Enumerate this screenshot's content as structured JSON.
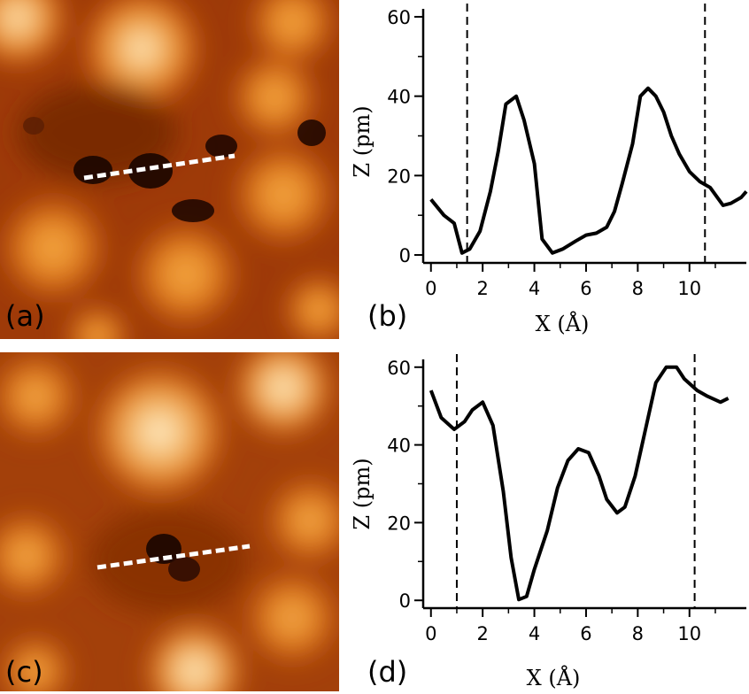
{
  "panels": {
    "a": {
      "letter": "(a)"
    },
    "b": {
      "letter": "(b)"
    },
    "c": {
      "letter": "(c)"
    },
    "d": {
      "letter": "(d)"
    }
  },
  "colors": {
    "line": "#000000",
    "profile_marker": "#ffffff",
    "stm_dark": "#1a0500",
    "stm_mid": "#b5470a",
    "stm_bright": "#fff5e0"
  },
  "chart_data": [
    {
      "id": "b",
      "type": "line",
      "xlabel": "X (Å)",
      "ylabel": "Z (pm)",
      "xlim": [
        -0.3,
        12.2
      ],
      "ylim": [
        -2,
        62
      ],
      "xticks": [
        0,
        2,
        4,
        6,
        8,
        10
      ],
      "yticks": [
        0,
        20,
        40,
        60
      ],
      "vlines": [
        1.4,
        10.6
      ],
      "series": [
        {
          "x": [
            0,
            0.5,
            0.9,
            1.2,
            1.5,
            1.9,
            2.3,
            2.6,
            2.9,
            3.3,
            3.6,
            4.0,
            4.3,
            4.7,
            5.1,
            5.6,
            6.0,
            6.4,
            6.8,
            7.1,
            7.4,
            7.8,
            8.1,
            8.4,
            8.7,
            9.0,
            9.3,
            9.6,
            10.0,
            10.4,
            10.8,
            11.3,
            11.6,
            12.0,
            12.2
          ],
          "y": [
            14,
            10,
            8,
            0.5,
            1.5,
            6,
            16,
            26,
            38,
            40,
            34,
            23,
            4,
            0.5,
            1.5,
            3.5,
            5,
            5.5,
            7,
            11,
            18,
            28,
            40,
            42,
            40,
            36,
            30,
            25.5,
            21,
            18.5,
            17,
            12.5,
            13,
            14.5,
            16
          ]
        }
      ]
    },
    {
      "id": "d",
      "type": "line",
      "xlabel": "X (Å)",
      "ylabel": "Z (pm)",
      "xlim": [
        -0.3,
        12.2
      ],
      "ylim": [
        -2,
        62
      ],
      "xticks": [
        0,
        2,
        4,
        6,
        8,
        10
      ],
      "yticks": [
        0,
        20,
        40,
        60
      ],
      "vlines": [
        1.0,
        10.2
      ],
      "series": [
        {
          "x": [
            0,
            0.4,
            0.9,
            1.3,
            1.6,
            2.0,
            2.4,
            2.8,
            3.1,
            3.4,
            3.7,
            4.0,
            4.5,
            4.9,
            5.3,
            5.7,
            6.1,
            6.5,
            6.8,
            7.2,
            7.5,
            7.9,
            8.3,
            8.7,
            9.1,
            9.5,
            9.8,
            10.3,
            10.7,
            11.2,
            11.5
          ],
          "y": [
            54,
            47,
            44,
            46,
            49,
            51,
            45,
            28,
            11,
            0.2,
            1,
            8,
            18,
            29,
            36,
            39,
            38,
            32,
            26,
            22.5,
            24,
            32,
            44,
            56,
            60,
            60,
            57,
            54,
            52.5,
            51,
            52
          ]
        }
      ]
    }
  ]
}
